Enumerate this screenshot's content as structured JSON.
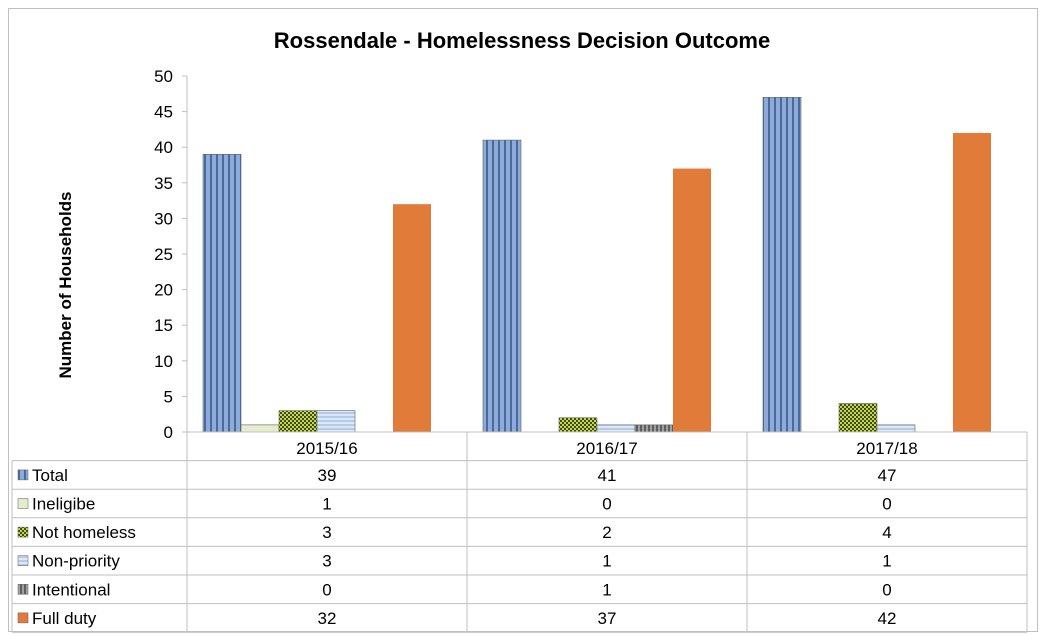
{
  "chart_data": {
    "type": "bar",
    "title": "Rossendale - Homelessness Decision Outcome",
    "ylabel": "Number of Households",
    "xlabel": "",
    "ylim": [
      0,
      50
    ],
    "yticks": [
      0,
      5,
      10,
      15,
      20,
      25,
      30,
      35,
      40,
      45,
      50
    ],
    "grid": false,
    "legend": "data-table",
    "categories": [
      "2015/16",
      "2016/17",
      "2017/18"
    ],
    "series": [
      {
        "name": "Total",
        "values": [
          39,
          41,
          47
        ],
        "color": "#7f9fd0",
        "pattern": "vertical-stripes"
      },
      {
        "name": "Ineligibe",
        "values": [
          1,
          0,
          0
        ],
        "color": "#d7e4bd",
        "pattern": "solid-light"
      },
      {
        "name": "Not homeless",
        "values": [
          3,
          2,
          4
        ],
        "color": "#4f6228",
        "pattern": "checker"
      },
      {
        "name": "Non-priority",
        "values": [
          3,
          1,
          1
        ],
        "color": "#c6d9f1",
        "pattern": "horizontal-stripes"
      },
      {
        "name": "Intentional",
        "values": [
          0,
          1,
          0
        ],
        "color": "#808080",
        "pattern": "dark-stripes"
      },
      {
        "name": "Full duty",
        "values": [
          32,
          37,
          42
        ],
        "color": "#e07b39",
        "pattern": "solid"
      }
    ]
  }
}
